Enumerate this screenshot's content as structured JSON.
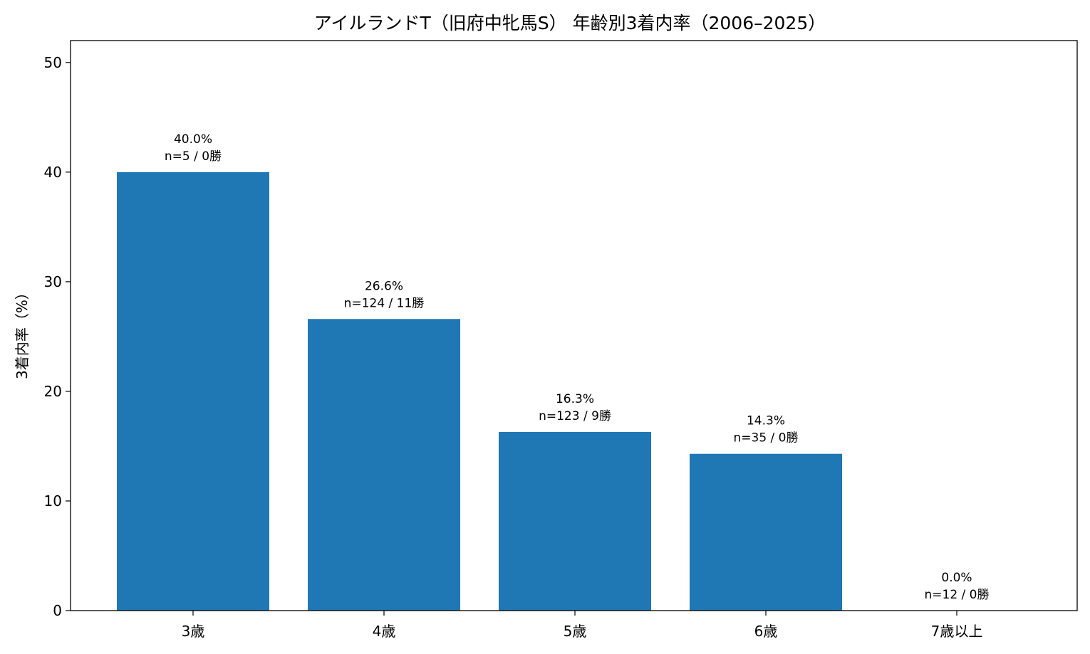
{
  "chart_data": {
    "type": "bar",
    "title": "アイルランドT（旧府中牝馬S） 年齢別3着内率（2006–2025）",
    "xlabel": "",
    "ylabel": "3着内率（%）",
    "ylim": [
      0,
      52
    ],
    "yticks": [
      0,
      10,
      20,
      30,
      40,
      50
    ],
    "grid": false,
    "bar_color": "#1f77b4",
    "categories": [
      "3歳",
      "4歳",
      "5歳",
      "6歳",
      "7歳以上"
    ],
    "values": [
      40.0,
      26.6,
      16.3,
      14.3,
      0.0
    ],
    "value_labels": [
      "40.0%",
      "26.6%",
      "16.3%",
      "14.3%",
      "0.0%"
    ],
    "count_labels": [
      "n=5 / 0勝",
      "n=124 / 11勝",
      "n=123 / 9勝",
      "n=35 / 0勝",
      "n=12 / 0勝"
    ]
  }
}
